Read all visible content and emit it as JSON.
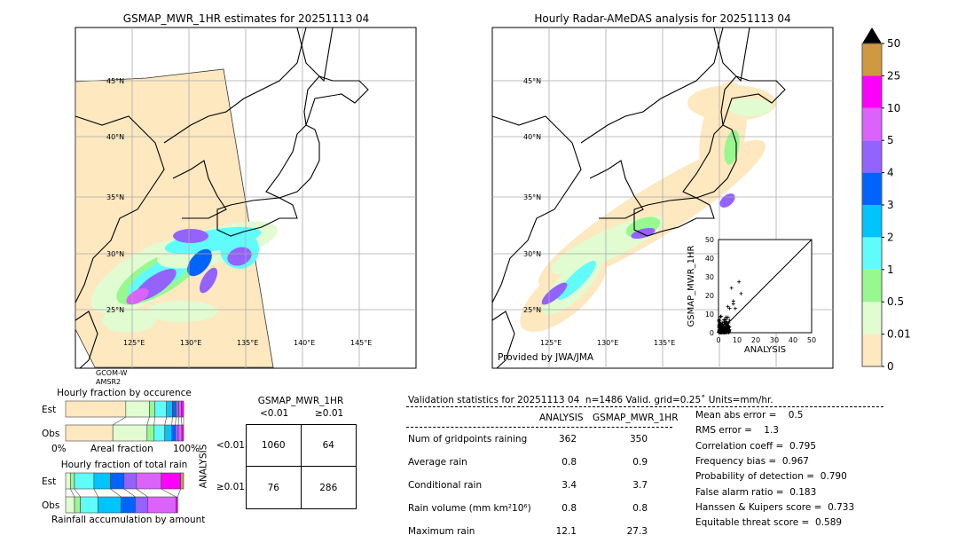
{
  "left_map": {
    "title": "GSMAP_MWR_1HR estimates for 20251113 04",
    "sensor_line1": "GCOM-W",
    "sensor_line2": "AMSR2",
    "lat_labels": [
      "45°N",
      "40°N",
      "35°N",
      "30°N",
      "25°N"
    ],
    "lon_labels": [
      "125°E",
      "130°E",
      "135°E",
      "140°E",
      "145°E"
    ]
  },
  "right_map": {
    "title": "Hourly Radar-AMeDAS analysis for 20251113 04",
    "credit": "Provided by JWA/JMA",
    "lat_labels": [
      "45°N",
      "40°N",
      "35°N",
      "30°N",
      "25°N"
    ],
    "lon_labels": [
      "125°E",
      "130°E",
      "135°E"
    ]
  },
  "colorbar": {
    "ticks": [
      "0",
      "0.01",
      "0.5",
      "1",
      "2",
      "3",
      "4",
      "5",
      "10",
      "25",
      "50"
    ],
    "colors": [
      "#fde8c0",
      "#e0fcd0",
      "#98f890",
      "#60fcfc",
      "#00c4fc",
      "#0064fc",
      "#9462fc",
      "#dc62fc",
      "#fc00fc",
      "#d09840"
    ],
    "extend_color": "#000000"
  },
  "chart_data": [
    {
      "type": "scatter",
      "xlabel": "ANALYSIS",
      "ylabel": "GSMAP_MWR_1HR",
      "xlim": [
        0,
        50
      ],
      "ylim": [
        0,
        50
      ],
      "ticks": [
        "0",
        "10",
        "20",
        "30",
        "40",
        "50"
      ],
      "outliers": [
        [
          11,
          27.3
        ],
        [
          7,
          24
        ],
        [
          12.1,
          21
        ],
        [
          8,
          17
        ],
        [
          8,
          15.5
        ],
        [
          5,
          14
        ],
        [
          6,
          13
        ],
        [
          9,
          13
        ]
      ],
      "cluster_note_max": [
        6,
        10
      ],
      "diagonal": true
    },
    {
      "type": "bar",
      "title": "Hourly fraction by occurence",
      "xlabel": "Areal fraction",
      "x_tick_left": "0%",
      "x_tick_right": "100%",
      "rows": [
        {
          "name": "Est",
          "fractions": [
            0.51,
            0.2,
            0.045,
            0.1,
            0.05,
            0.03,
            0.025,
            0.02,
            0.02,
            0
          ]
        },
        {
          "name": "Obs",
          "fractions": [
            0.4,
            0.29,
            0.06,
            0.09,
            0.06,
            0.03,
            0.025,
            0.03,
            0.015,
            0
          ]
        }
      ]
    },
    {
      "type": "bar",
      "title": "Hourly fraction of total rain",
      "xlabel": "Rainfall accumulation by amount",
      "rows": [
        {
          "name": "Est",
          "fractions": [
            0,
            0.04,
            0.035,
            0.165,
            0.14,
            0.115,
            0.105,
            0.21,
            0.165,
            0.025
          ]
        },
        {
          "name": "Obs",
          "fractions": [
            0,
            0.075,
            0.05,
            0.15,
            0.195,
            0.12,
            0.105,
            0.24,
            0.015,
            0
          ]
        }
      ]
    }
  ],
  "contingency": {
    "title": "GSMAP_MWR_1HR",
    "col_labels": [
      "<0.01",
      "≥0.01"
    ],
    "row_axis": "ANALYSIS",
    "row_labels": [
      "<0.01",
      "≥0.01"
    ],
    "cells": [
      [
        "1060",
        "64"
      ],
      [
        "76",
        "286"
      ]
    ]
  },
  "stats": {
    "header": "Validation statistics for 20251113 04  n=1486 Valid. grid=0.25˚ Units=mm/hr.",
    "col1": "ANALYSIS",
    "col2": "GSMAP_MWR_1HR",
    "rows": [
      {
        "label": "Num of gridpoints raining",
        "a": "362",
        "b": "350"
      },
      {
        "label": "Average rain",
        "a": "0.8",
        "b": "0.9"
      },
      {
        "label": "Conditional rain",
        "a": "3.4",
        "b": "3.7"
      },
      {
        "label": "Rain volume (mm km²10⁶)",
        "a": "0.8",
        "b": "0.8"
      },
      {
        "label": "Maximum rain",
        "a": "12.1",
        "b": "27.3"
      }
    ],
    "scores": [
      "Mean abs error =    0.5",
      "RMS error =    1.3",
      "Correlation coeff =  0.795",
      "Frequency bias =  0.967",
      "Probability of detection =  0.790",
      "False alarm ratio =  0.183",
      "Hanssen & Kuipers score =  0.733",
      "Equitable threat score =  0.589"
    ]
  }
}
